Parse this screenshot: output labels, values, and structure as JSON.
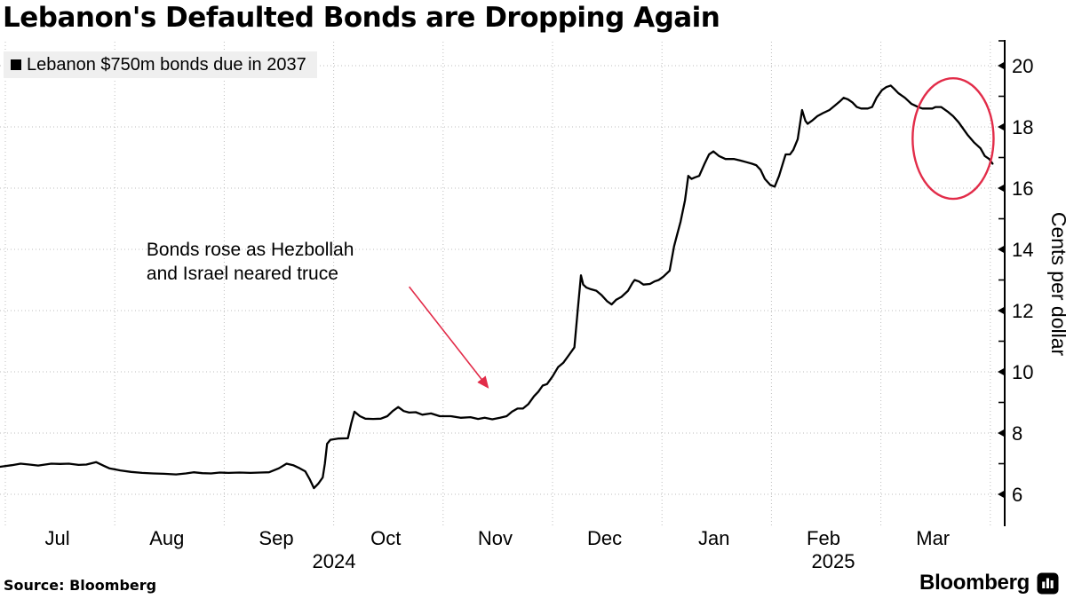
{
  "title": "Lebanon's Defaulted Bonds are Dropping Again",
  "legend": {
    "label": "Lebanon $750m bonds due in 2037",
    "swatch_color": "#000000"
  },
  "source": "Source: Bloomberg",
  "logo": {
    "wordmark": "Bloomberg"
  },
  "colors": {
    "line": "#000000",
    "grid": "#bdbdbd",
    "annotation_red": "#e22c49",
    "legend_bg": "#efefef"
  },
  "chart_data": {
    "type": "line",
    "title": "Lebanon's Defaulted Bonds are Dropping Again",
    "ylabel": "Cents per dollar",
    "ylim": [
      5.4,
      20.9
    ],
    "y_major_ticks": [
      6,
      8,
      10,
      12,
      14,
      16,
      18,
      20
    ],
    "y_minor_ticks": [
      7,
      9,
      11,
      13,
      15,
      17,
      19
    ],
    "grid": "dotted",
    "legend_position": "top-left",
    "x_axis": {
      "unit": "months since 2024-07-01 (0 = Jul 1 2024, 9 = Apr 1 2025)",
      "gridline_month_positions": [
        0,
        1,
        2,
        3,
        4,
        5,
        6,
        7,
        8,
        9
      ],
      "month_labels": [
        "Jul",
        "Aug",
        "Sep",
        "Oct",
        "Nov",
        "Dec",
        "Jan",
        "Feb",
        "Mar"
      ],
      "year_labels": [
        "2024",
        "2025"
      ]
    },
    "series": [
      {
        "name": "Lebanon $750m bonds due in 2037",
        "color": "#000000",
        "points": [
          [
            -0.05,
            6.9
          ],
          [
            0.06,
            6.95
          ],
          [
            0.14,
            7.0
          ],
          [
            0.22,
            6.97
          ],
          [
            0.3,
            6.94
          ],
          [
            0.42,
            7.0
          ],
          [
            0.5,
            6.99
          ],
          [
            0.58,
            7.0
          ],
          [
            0.67,
            6.96
          ],
          [
            0.74,
            6.97
          ],
          [
            0.83,
            7.05
          ],
          [
            0.9,
            6.93
          ],
          [
            0.95,
            6.85
          ],
          [
            1.05,
            6.78
          ],
          [
            1.15,
            6.73
          ],
          [
            1.25,
            6.7
          ],
          [
            1.35,
            6.68
          ],
          [
            1.45,
            6.67
          ],
          [
            1.56,
            6.65
          ],
          [
            1.65,
            6.68
          ],
          [
            1.72,
            6.72
          ],
          [
            1.8,
            6.69
          ],
          [
            1.88,
            6.68
          ],
          [
            1.96,
            6.71
          ],
          [
            2.04,
            6.7
          ],
          [
            2.14,
            6.71
          ],
          [
            2.24,
            6.7
          ],
          [
            2.33,
            6.71
          ],
          [
            2.41,
            6.72
          ],
          [
            2.5,
            6.85
          ],
          [
            2.57,
            7.0
          ],
          [
            2.63,
            6.95
          ],
          [
            2.69,
            6.85
          ],
          [
            2.74,
            6.75
          ],
          [
            2.78,
            6.5
          ],
          [
            2.82,
            6.2
          ],
          [
            2.86,
            6.35
          ],
          [
            2.9,
            6.55
          ],
          [
            2.92,
            7.0
          ],
          [
            2.94,
            7.65
          ],
          [
            2.97,
            7.78
          ],
          [
            3.04,
            7.82
          ],
          [
            3.13,
            7.83
          ],
          [
            3.16,
            8.3
          ],
          [
            3.19,
            8.7
          ],
          [
            3.24,
            8.55
          ],
          [
            3.29,
            8.47
          ],
          [
            3.36,
            8.46
          ],
          [
            3.43,
            8.47
          ],
          [
            3.49,
            8.55
          ],
          [
            3.54,
            8.72
          ],
          [
            3.59,
            8.85
          ],
          [
            3.64,
            8.72
          ],
          [
            3.69,
            8.67
          ],
          [
            3.75,
            8.68
          ],
          [
            3.81,
            8.6
          ],
          [
            3.89,
            8.64
          ],
          [
            3.97,
            8.55
          ],
          [
            4.07,
            8.55
          ],
          [
            4.16,
            8.5
          ],
          [
            4.25,
            8.52
          ],
          [
            4.32,
            8.46
          ],
          [
            4.38,
            8.5
          ],
          [
            4.45,
            8.45
          ],
          [
            4.52,
            8.5
          ],
          [
            4.58,
            8.55
          ],
          [
            4.63,
            8.7
          ],
          [
            4.68,
            8.8
          ],
          [
            4.73,
            8.8
          ],
          [
            4.78,
            8.95
          ],
          [
            4.83,
            9.2
          ],
          [
            4.87,
            9.35
          ],
          [
            4.91,
            9.55
          ],
          [
            4.95,
            9.6
          ],
          [
            5.0,
            9.85
          ],
          [
            5.05,
            10.15
          ],
          [
            5.1,
            10.3
          ],
          [
            5.15,
            10.55
          ],
          [
            5.2,
            10.8
          ],
          [
            5.23,
            12.0
          ],
          [
            5.26,
            13.15
          ],
          [
            5.28,
            12.85
          ],
          [
            5.31,
            12.75
          ],
          [
            5.35,
            12.7
          ],
          [
            5.4,
            12.65
          ],
          [
            5.45,
            12.5
          ],
          [
            5.5,
            12.3
          ],
          [
            5.54,
            12.2
          ],
          [
            5.58,
            12.35
          ],
          [
            5.63,
            12.45
          ],
          [
            5.69,
            12.65
          ],
          [
            5.73,
            12.9
          ],
          [
            5.75,
            13.0
          ],
          [
            5.79,
            12.95
          ],
          [
            5.83,
            12.85
          ],
          [
            5.89,
            12.87
          ],
          [
            5.93,
            12.95
          ],
          [
            5.97,
            13.0
          ],
          [
            6.01,
            13.1
          ],
          [
            6.07,
            13.3
          ],
          [
            6.11,
            14.1
          ],
          [
            6.14,
            14.5
          ],
          [
            6.17,
            14.9
          ],
          [
            6.21,
            15.6
          ],
          [
            6.24,
            16.4
          ],
          [
            6.27,
            16.3
          ],
          [
            6.3,
            16.35
          ],
          [
            6.34,
            16.4
          ],
          [
            6.39,
            16.8
          ],
          [
            6.43,
            17.1
          ],
          [
            6.47,
            17.2
          ],
          [
            6.52,
            17.05
          ],
          [
            6.58,
            16.95
          ],
          [
            6.66,
            16.95
          ],
          [
            6.72,
            16.9
          ],
          [
            6.77,
            16.85
          ],
          [
            6.82,
            16.8
          ],
          [
            6.86,
            16.75
          ],
          [
            6.9,
            16.6
          ],
          [
            6.94,
            16.3
          ],
          [
            6.99,
            16.1
          ],
          [
            7.03,
            16.05
          ],
          [
            7.07,
            16.4
          ],
          [
            7.1,
            16.75
          ],
          [
            7.13,
            17.1
          ],
          [
            7.17,
            17.1
          ],
          [
            7.2,
            17.25
          ],
          [
            7.24,
            17.6
          ],
          [
            7.28,
            18.55
          ],
          [
            7.31,
            18.2
          ],
          [
            7.33,
            18.1
          ],
          [
            7.37,
            18.2
          ],
          [
            7.42,
            18.35
          ],
          [
            7.47,
            18.45
          ],
          [
            7.53,
            18.55
          ],
          [
            7.58,
            18.7
          ],
          [
            7.63,
            18.85
          ],
          [
            7.66,
            18.95
          ],
          [
            7.7,
            18.9
          ],
          [
            7.74,
            18.8
          ],
          [
            7.78,
            18.65
          ],
          [
            7.82,
            18.6
          ],
          [
            7.88,
            18.6
          ],
          [
            7.92,
            18.65
          ],
          [
            7.96,
            18.95
          ],
          [
            8.01,
            19.2
          ],
          [
            8.05,
            19.3
          ],
          [
            8.09,
            19.35
          ],
          [
            8.12,
            19.25
          ],
          [
            8.16,
            19.1
          ],
          [
            8.22,
            18.95
          ],
          [
            8.28,
            18.75
          ],
          [
            8.34,
            18.65
          ],
          [
            8.38,
            18.6
          ],
          [
            8.43,
            18.6
          ],
          [
            8.47,
            18.6
          ],
          [
            8.5,
            18.65
          ],
          [
            8.55,
            18.65
          ],
          [
            8.61,
            18.5
          ],
          [
            8.66,
            18.35
          ],
          [
            8.71,
            18.15
          ],
          [
            8.75,
            17.95
          ],
          [
            8.79,
            17.75
          ],
          [
            8.85,
            17.5
          ],
          [
            8.88,
            17.4
          ],
          [
            8.91,
            17.3
          ],
          [
            8.95,
            17.05
          ],
          [
            8.99,
            16.95
          ],
          [
            9.02,
            16.8
          ]
        ]
      }
    ],
    "annotations": [
      {
        "type": "label",
        "lines": [
          "Bonds rose as Hezbollah",
          "and Israel neared truce"
        ],
        "color": "#e22c49",
        "x_month": 1.29,
        "y_value": 13.8,
        "line_step_values": 0.78
      },
      {
        "type": "arrow",
        "color": "#e22c49",
        "from": {
          "x_month": 3.69,
          "y_value": 12.78
        },
        "to": {
          "x_month": 4.41,
          "y_value": 9.49
        }
      },
      {
        "type": "ellipse",
        "color": "#e22c49",
        "x_month": 8.66,
        "y_value": 17.62,
        "rx_months": 0.37,
        "ry_values": 1.97
      }
    ]
  }
}
